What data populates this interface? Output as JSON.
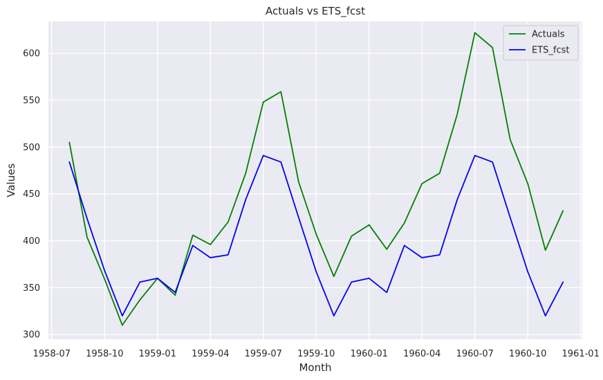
{
  "chart_data": {
    "type": "line",
    "title": "Actuals vs ETS_fcst",
    "xlabel": "Month",
    "ylabel": "Values",
    "x": [
      "1958-08",
      "1958-09",
      "1958-10",
      "1958-11",
      "1958-12",
      "1959-01",
      "1959-02",
      "1959-03",
      "1959-04",
      "1959-05",
      "1959-06",
      "1959-07",
      "1959-08",
      "1959-09",
      "1959-10",
      "1959-11",
      "1959-12",
      "1960-01",
      "1960-02",
      "1960-03",
      "1960-04",
      "1960-05",
      "1960-06",
      "1960-07",
      "1960-08",
      "1960-09",
      "1960-10",
      "1960-11",
      "1960-12"
    ],
    "xticks": [
      "1958-07",
      "1958-10",
      "1959-01",
      "1959-04",
      "1959-07",
      "1959-10",
      "1960-01",
      "1960-04",
      "1960-07",
      "1960-10",
      "1961-01"
    ],
    "yticks": [
      300,
      350,
      400,
      450,
      500,
      550,
      600
    ],
    "ylim": [
      295,
      634
    ],
    "grid": true,
    "legend_position": "top-right",
    "series": [
      {
        "name": "Actuals",
        "color": "#008000",
        "values": [
          505,
          404,
          359,
          310,
          337,
          360,
          342,
          406,
          396,
          420,
          472,
          548,
          559,
          463,
          407,
          362,
          405,
          417,
          391,
          419,
          461,
          472,
          535,
          622,
          606,
          508,
          461,
          390,
          432
        ]
      },
      {
        "name": "ETS_fcst",
        "color": "#0000ee",
        "values": [
          484,
          424,
          368,
          320,
          356,
          360,
          345,
          395,
          382,
          385,
          444,
          491,
          484,
          425,
          367,
          320,
          356,
          360,
          345,
          395,
          382,
          385,
          444,
          491,
          484,
          425,
          367,
          320,
          356
        ]
      }
    ]
  }
}
